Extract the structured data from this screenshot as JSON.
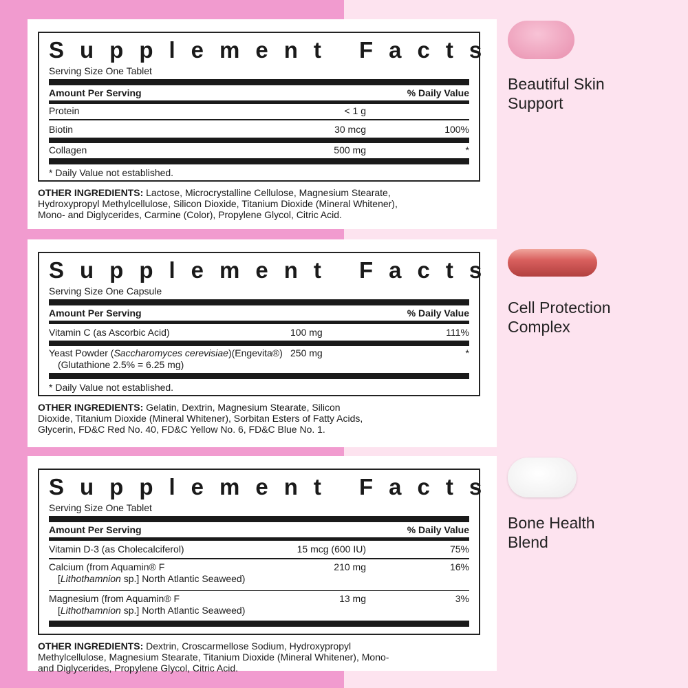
{
  "panels": [
    {
      "title": "Supplement Facts",
      "serving": "Serving Size One Tablet",
      "amount_header": "Amount Per Serving",
      "dv_header": "% Daily Value",
      "rows": [
        {
          "name": "Protein",
          "amount": "< 1 g",
          "dv": ""
        },
        {
          "name": "Biotin",
          "amount": "30 mcg",
          "dv": "100%"
        },
        {
          "name": "Collagen",
          "amount": "500 mg",
          "dv": "*"
        }
      ],
      "note": "* Daily Value not established.",
      "ingredients_label": "OTHER INGREDIENTS:",
      "ingredients": " Lactose, Microcrystalline Cellulose, Magnesium Stearate, Hydroxypropyl Methylcellulose, Silicon Dioxide, Titanium Dioxide (Mineral Whitener), Mono- and Diglycerides, Carmine (Color), Propylene Glycol, Citric Acid."
    },
    {
      "title": "Supplement Facts",
      "serving": "Serving Size One Capsule",
      "amount_header": "Amount Per Serving",
      "dv_header": "% Daily Value",
      "rows": [
        {
          "name": "Vitamin C (as Ascorbic Acid)",
          "amount": "100 mg",
          "dv": "111%"
        },
        {
          "name_pre": "Yeast Powder (",
          "name_italic": "Saccharomyces cerevisiae",
          "name_post": ")(Engevita®)",
          "sub": "(Glutathione 2.5% = 6.25 mg)",
          "amount": "250 mg",
          "dv": "*"
        }
      ],
      "note": "* Daily Value not established.",
      "ingredients_label": "OTHER INGREDIENTS:",
      "ingredients": " Gelatin, Dextrin, Magnesium Stearate, Silicon Dioxide, Titanium Dioxide (Mineral Whitener), Sorbitan Esters of Fatty Acids, Glycerin, FD&C Red No. 40, FD&C Yellow No. 6, FD&C Blue No. 1."
    },
    {
      "title": "Supplement Facts",
      "serving": "Serving Size One Tablet",
      "amount_header": "Amount Per Serving",
      "dv_header": "% Daily Value",
      "rows": [
        {
          "name": "Vitamin D-3 (as Cholecalciferol)",
          "amount": "15 mcg (600 IU)",
          "dv": "75%"
        },
        {
          "name": "Calcium (from Aquamin® F",
          "sub_pre": "[",
          "sub_italic": "Lithothamnion",
          "sub_post": " sp.] North Atlantic Seaweed)",
          "amount": "210 mg",
          "dv": "16%"
        },
        {
          "name": "Magnesium (from Aquamin® F",
          "sub_pre": "[",
          "sub_italic": "Lithothamnion",
          "sub_post": " sp.] North Atlantic Seaweed)",
          "amount": "13 mg",
          "dv": "3%"
        }
      ],
      "ingredients_label": "OTHER INGREDIENTS:",
      "ingredients": " Dextrin, Croscarmellose Sodium, Hydroxypropyl Methylcellulose, Magnesium Stearate, Titanium Dioxide (Mineral Whitener), Mono- and Diglycerides, Propylene Glycol, Citric Acid."
    }
  ],
  "products": [
    {
      "name_line1": "Beautiful Skin",
      "name_line2": "Support",
      "color": "#f0a3bd"
    },
    {
      "name_line1": "Cell Protection",
      "name_line2": "Complex",
      "color": "#d9605e"
    },
    {
      "name_line1": "Bone Health",
      "name_line2": "Blend",
      "color": "#f7f7f7"
    }
  ],
  "colors": {
    "left_bg": "#f19bcf",
    "right_bg": "#fde3ef"
  }
}
